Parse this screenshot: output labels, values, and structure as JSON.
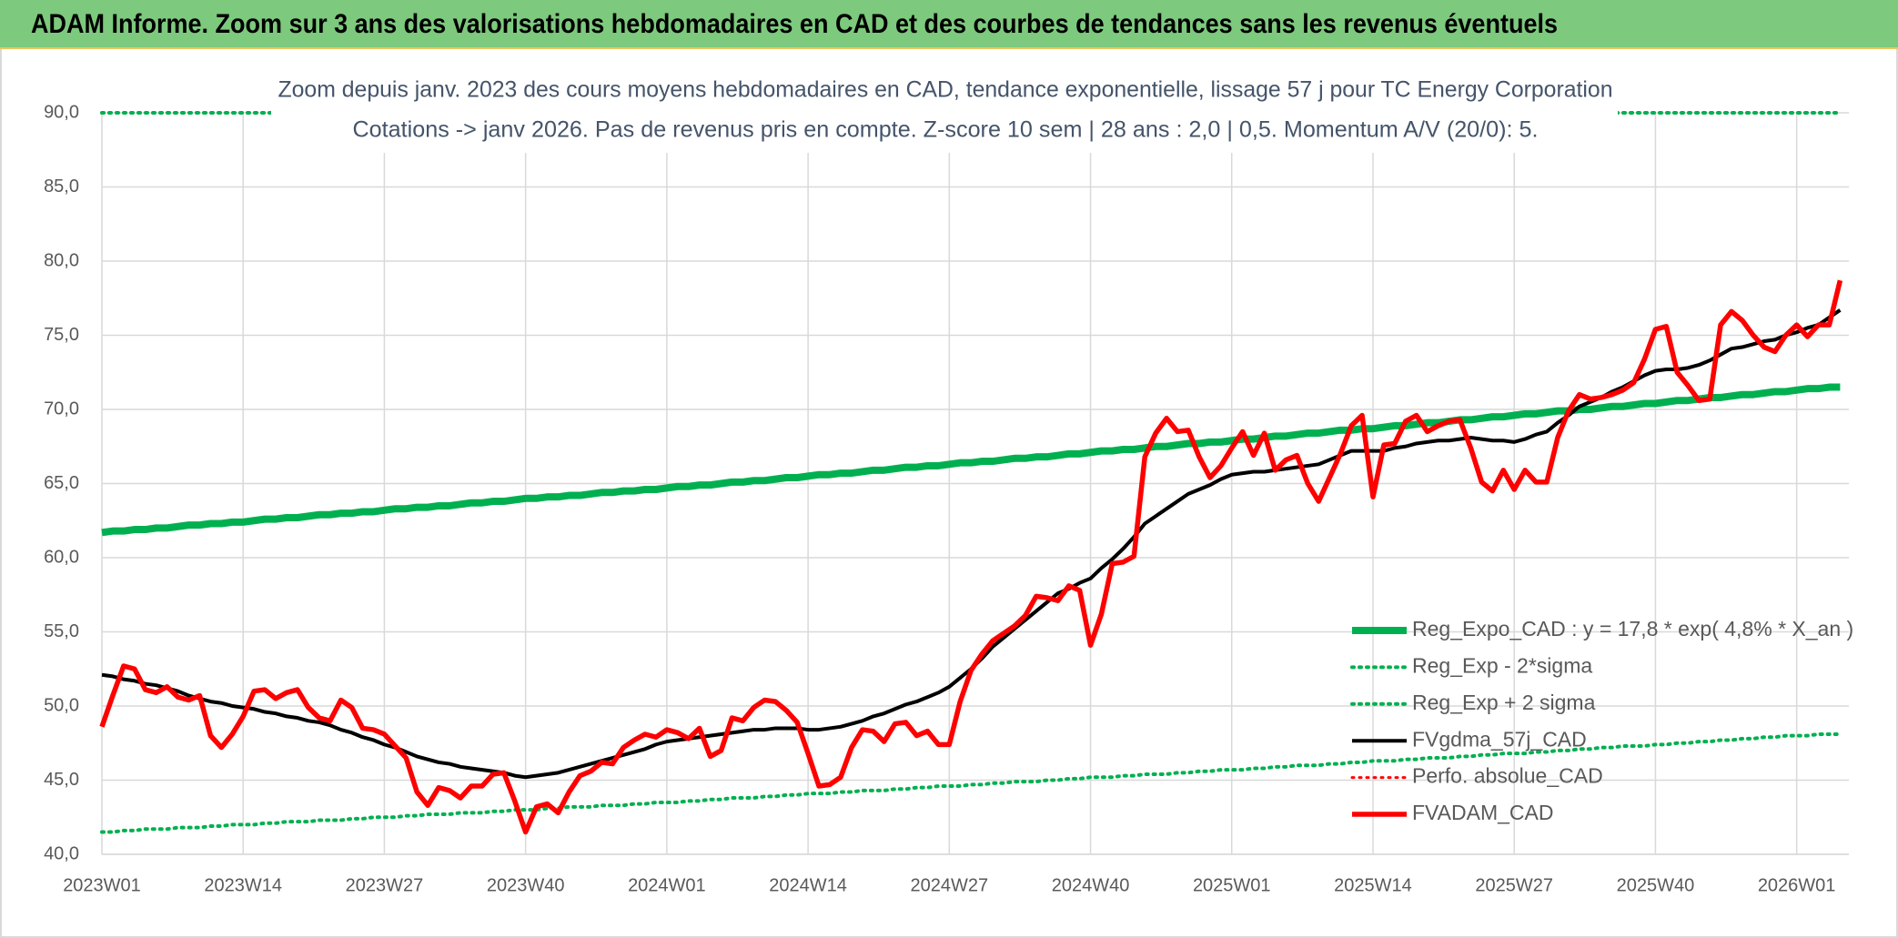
{
  "chart_data": {
    "type": "line",
    "title": "ADAM Informe. Zoom sur 3 ans des valorisations hebdomadaires en CAD et des courbes de tendances sans les revenus éventuels",
    "subtitle": [
      "Zoom depuis janv. 2023 des cours moyens hebdomadaires en CAD, tendance exponentielle, lissage 57 j pour TC Energy Corporation",
      "Cotations -> janv 2026. Pas de revenus pris en compte. Z-score 10 sem | 28 ans : 2,0 | 0,5. Momentum A/V (20/0): 5."
    ],
    "categories": [
      "2023W01",
      null,
      null,
      null,
      null,
      null,
      null,
      null,
      null,
      null,
      null,
      null,
      null,
      "2023W14",
      null,
      null,
      null,
      null,
      null,
      null,
      null,
      null,
      null,
      null,
      null,
      null,
      "2023W27",
      null,
      null,
      null,
      null,
      null,
      null,
      null,
      null,
      null,
      null,
      null,
      null,
      "2023W40",
      null,
      null,
      null,
      null,
      null,
      null,
      null,
      null,
      null,
      null,
      null,
      null,
      "2024W01",
      null,
      null,
      null,
      null,
      null,
      null,
      null,
      null,
      null,
      null,
      null,
      null,
      "2024W14",
      null,
      null,
      null,
      null,
      null,
      null,
      null,
      null,
      null,
      null,
      null,
      null,
      "2024W27",
      null,
      null,
      null,
      null,
      null,
      null,
      null,
      null,
      null,
      null,
      null,
      null,
      "2024W40",
      null,
      null,
      null,
      null,
      null,
      null,
      null,
      null,
      null,
      null,
      null,
      null,
      "2025W01",
      null,
      null,
      null,
      null,
      null,
      null,
      null,
      null,
      null,
      null,
      null,
      null,
      "2025W14",
      null,
      null,
      null,
      null,
      null,
      null,
      null,
      null,
      null,
      null,
      null,
      null,
      "2025W27",
      null,
      null,
      null,
      null,
      null,
      null,
      null,
      null,
      null,
      null,
      null,
      null,
      "2025W40",
      null,
      null,
      null,
      null,
      null,
      null,
      null,
      null,
      null,
      null,
      null,
      null,
      "2026W01",
      null,
      null,
      null,
      null
    ],
    "ylim": [
      40,
      90
    ],
    "yticks": [
      {
        "value": 40,
        "label": "40,0"
      },
      {
        "value": 45,
        "label": "45,0"
      },
      {
        "value": 50,
        "label": "50,0"
      },
      {
        "value": 55,
        "label": "55,0"
      },
      {
        "value": 60,
        "label": "60,0"
      },
      {
        "value": 65,
        "label": "65,0"
      },
      {
        "value": 70,
        "label": "70,0"
      },
      {
        "value": 75,
        "label": "75,0"
      },
      {
        "value": 80,
        "label": "80,0"
      },
      {
        "value": 85,
        "label": "85,0"
      },
      {
        "value": 90,
        "label": "90,0"
      }
    ],
    "grid": true,
    "legend": "right",
    "series": [
      {
        "name": "Reg_Expo_CAD : y = 17,8 * exp( 4,8% *  X_an )",
        "color": "#00b050",
        "line_style": "solid",
        "values": [
          61.7,
          61.8,
          61.8,
          61.9,
          61.9,
          62.0,
          62.0,
          62.1,
          62.2,
          62.2,
          62.3,
          62.3,
          62.4,
          62.4,
          62.5,
          62.6,
          62.6,
          62.7,
          62.7,
          62.8,
          62.9,
          62.9,
          63.0,
          63.0,
          63.1,
          63.1,
          63.2,
          63.3,
          63.3,
          63.4,
          63.4,
          63.5,
          63.5,
          63.6,
          63.7,
          63.7,
          63.8,
          63.8,
          63.9,
          64.0,
          64.0,
          64.1,
          64.1,
          64.2,
          64.2,
          64.3,
          64.4,
          64.4,
          64.5,
          64.5,
          64.6,
          64.6,
          64.7,
          64.8,
          64.8,
          64.9,
          64.9,
          65.0,
          65.1,
          65.1,
          65.2,
          65.2,
          65.3,
          65.4,
          65.4,
          65.5,
          65.6,
          65.6,
          65.7,
          65.7,
          65.8,
          65.9,
          65.9,
          66.0,
          66.1,
          66.1,
          66.2,
          66.2,
          66.3,
          66.4,
          66.4,
          66.5,
          66.5,
          66.6,
          66.7,
          66.7,
          66.8,
          66.8,
          66.9,
          67.0,
          67.0,
          67.1,
          67.2,
          67.2,
          67.3,
          67.3,
          67.4,
          67.5,
          67.5,
          67.6,
          67.7,
          67.7,
          67.8,
          67.8,
          67.9,
          68.0,
          68.0,
          68.1,
          68.2,
          68.2,
          68.3,
          68.4,
          68.4,
          68.5,
          68.6,
          68.6,
          68.7,
          68.7,
          68.8,
          68.9,
          68.9,
          69.0,
          69.1,
          69.1,
          69.2,
          69.3,
          69.3,
          69.4,
          69.5,
          69.5,
          69.6,
          69.7,
          69.7,
          69.8,
          69.9,
          69.9,
          70.0,
          70.0,
          70.1,
          70.2,
          70.2,
          70.3,
          70.4,
          70.4,
          70.5,
          70.6,
          70.6,
          70.7,
          70.8,
          70.8,
          70.9,
          71.0,
          71.0,
          71.1,
          71.2,
          71.2,
          71.3,
          71.4,
          71.4,
          71.5,
          71.5
        ]
      },
      {
        "name": "Reg_Exp - 2*sigma",
        "color": "#00b050",
        "line_style": "dotted",
        "values": [
          41.5,
          41.5,
          41.6,
          41.6,
          41.7,
          41.7,
          41.7,
          41.8,
          41.8,
          41.8,
          41.9,
          41.9,
          42.0,
          42.0,
          42.0,
          42.1,
          42.1,
          42.2,
          42.2,
          42.2,
          42.3,
          42.3,
          42.3,
          42.4,
          42.4,
          42.5,
          42.5,
          42.5,
          42.6,
          42.6,
          42.7,
          42.7,
          42.7,
          42.8,
          42.8,
          42.8,
          42.9,
          42.9,
          43.0,
          43.0,
          43.0,
          43.1,
          43.1,
          43.2,
          43.2,
          43.2,
          43.3,
          43.3,
          43.3,
          43.4,
          43.4,
          43.5,
          43.5,
          43.5,
          43.6,
          43.6,
          43.7,
          43.7,
          43.8,
          43.8,
          43.8,
          43.9,
          43.9,
          44.0,
          44.0,
          44.1,
          44.1,
          44.1,
          44.2,
          44.2,
          44.3,
          44.3,
          44.3,
          44.4,
          44.4,
          44.5,
          44.5,
          44.6,
          44.6,
          44.6,
          44.7,
          44.7,
          44.8,
          44.8,
          44.9,
          44.9,
          44.9,
          45.0,
          45.0,
          45.1,
          45.1,
          45.2,
          45.2,
          45.2,
          45.3,
          45.3,
          45.4,
          45.4,
          45.4,
          45.5,
          45.5,
          45.6,
          45.6,
          45.7,
          45.7,
          45.7,
          45.8,
          45.8,
          45.9,
          45.9,
          46.0,
          46.0,
          46.0,
          46.1,
          46.1,
          46.2,
          46.2,
          46.3,
          46.3,
          46.3,
          46.4,
          46.4,
          46.5,
          46.5,
          46.5,
          46.6,
          46.6,
          46.7,
          46.7,
          46.8,
          46.8,
          46.8,
          46.9,
          46.9,
          47.0,
          47.0,
          47.1,
          47.1,
          47.2,
          47.2,
          47.3,
          47.3,
          47.3,
          47.4,
          47.4,
          47.5,
          47.5,
          47.6,
          47.6,
          47.7,
          47.7,
          47.8,
          47.8,
          47.9,
          47.9,
          48.0,
          48.0,
          48.0,
          48.1,
          48.1,
          48.1
        ]
      },
      {
        "name": "Reg_Exp + 2 sigma",
        "color": "#00b050",
        "line_style": "dotted",
        "values": [
          90,
          90,
          90,
          90,
          90,
          90,
          90,
          90,
          90,
          90,
          90,
          90,
          90,
          90,
          90,
          90,
          90,
          90,
          90,
          90,
          90,
          90,
          90,
          90,
          90,
          90,
          90,
          90,
          90,
          90,
          90,
          90,
          90,
          90,
          90,
          90,
          90,
          90,
          90,
          90,
          90,
          90,
          90,
          90,
          90,
          90,
          90,
          90,
          90,
          90,
          90,
          90,
          90,
          90,
          90,
          90,
          90,
          90,
          90,
          90,
          90,
          90,
          90,
          90,
          90,
          90,
          90,
          90,
          90,
          90,
          90,
          90,
          90,
          90,
          90,
          90,
          90,
          90,
          90,
          90,
          90,
          90,
          90,
          90,
          90,
          90,
          90,
          90,
          90,
          90,
          90,
          90,
          90,
          90,
          90,
          90,
          90,
          90,
          90,
          90,
          90,
          90,
          90,
          90,
          90,
          90,
          90,
          90,
          90,
          90,
          90,
          90,
          90,
          90,
          90,
          90,
          90,
          90,
          90,
          90,
          90,
          90,
          90,
          90,
          90,
          90,
          90,
          90,
          90,
          90,
          90,
          90,
          90,
          90,
          90,
          90,
          90,
          90,
          90,
          90,
          90,
          90,
          90,
          90,
          90,
          90,
          90,
          90,
          90,
          90,
          90,
          90,
          90,
          90,
          90,
          90,
          90,
          90,
          90,
          90,
          90
        ]
      },
      {
        "name": "FVgdma_57j_CAD",
        "color": "#000000",
        "line_style": "solid",
        "values": [
          52.1,
          52.0,
          51.8,
          51.7,
          51.5,
          51.4,
          51.2,
          51.0,
          50.7,
          50.5,
          50.3,
          50.2,
          50.0,
          49.9,
          49.8,
          49.6,
          49.5,
          49.3,
          49.2,
          49.0,
          48.9,
          48.7,
          48.4,
          48.2,
          47.9,
          47.7,
          47.4,
          47.2,
          46.9,
          46.6,
          46.4,
          46.2,
          46.1,
          45.9,
          45.8,
          45.7,
          45.6,
          45.5,
          45.3,
          45.2,
          45.3,
          45.4,
          45.5,
          45.7,
          45.9,
          46.1,
          46.3,
          46.5,
          46.7,
          46.9,
          47.1,
          47.4,
          47.6,
          47.7,
          47.8,
          47.9,
          48.0,
          48.1,
          48.2,
          48.3,
          48.4,
          48.4,
          48.5,
          48.5,
          48.5,
          48.4,
          48.4,
          48.5,
          48.6,
          48.8,
          49.0,
          49.3,
          49.5,
          49.8,
          50.1,
          50.3,
          50.6,
          50.9,
          51.3,
          51.9,
          52.5,
          53.2,
          54.0,
          54.6,
          55.2,
          55.8,
          56.4,
          57.0,
          57.6,
          57.9,
          58.3,
          58.6,
          59.3,
          59.9,
          60.6,
          61.4,
          62.3,
          62.8,
          63.3,
          63.8,
          64.3,
          64.6,
          64.9,
          65.3,
          65.6,
          65.7,
          65.8,
          65.8,
          65.9,
          66.0,
          66.1,
          66.2,
          66.3,
          66.6,
          66.9,
          67.2,
          67.2,
          67.2,
          67.2,
          67.4,
          67.5,
          67.7,
          67.8,
          67.9,
          67.9,
          68.0,
          68.1,
          68.0,
          67.9,
          67.9,
          67.8,
          68.0,
          68.3,
          68.5,
          69.1,
          69.6,
          70.2,
          70.5,
          70.8,
          71.2,
          71.5,
          71.9,
          72.3,
          72.6,
          72.7,
          72.7,
          72.8,
          73.0,
          73.3,
          73.7,
          74.1,
          74.2,
          74.4,
          74.6,
          74.7,
          75.0,
          75.2,
          75.5,
          75.7,
          76.2,
          76.7
        ]
      },
      {
        "name": "Perfo. absolue_CAD",
        "color": "#ff0000",
        "line_style": "dotted",
        "values": [
          null,
          null,
          null,
          null,
          null,
          null,
          null,
          null,
          null,
          null,
          null,
          null,
          null,
          null,
          null,
          null,
          null,
          null,
          null,
          null,
          null,
          null,
          null,
          null,
          null,
          null,
          null,
          null,
          null,
          null,
          null,
          null,
          null,
          null,
          null,
          null,
          null,
          null,
          null,
          null,
          null,
          null,
          null,
          null,
          null,
          null,
          null,
          null,
          null,
          null,
          null,
          null,
          null,
          null,
          null,
          null,
          null,
          null,
          null,
          null,
          null,
          null,
          null,
          null,
          null,
          null,
          null,
          null,
          null,
          null,
          null,
          null,
          null,
          null,
          null,
          null,
          null,
          null,
          null,
          null,
          null,
          null,
          null,
          null,
          null,
          null,
          null,
          null,
          null,
          null,
          null,
          null,
          null,
          null,
          null,
          null,
          null,
          null,
          null,
          null,
          null,
          null,
          null,
          null,
          null,
          null,
          null,
          null,
          null,
          null,
          null,
          null,
          null,
          null,
          null,
          null,
          null,
          null,
          null,
          null,
          null,
          null,
          null,
          null,
          null,
          null,
          null,
          null,
          null,
          null,
          null,
          null,
          null,
          null,
          null,
          null,
          null,
          null,
          null,
          null,
          null,
          null,
          null,
          null,
          null,
          null,
          null,
          null,
          null,
          null,
          null,
          null,
          null,
          null,
          null,
          null,
          null,
          null,
          null,
          null,
          null
        ]
      },
      {
        "name": "FVADAM_CAD",
        "color": "#ff0000",
        "line_style": "solid",
        "values": [
          48.6,
          50.7,
          52.7,
          52.5,
          51.1,
          50.9,
          51.3,
          50.6,
          50.4,
          50.7,
          48.0,
          47.2,
          48.1,
          49.3,
          51.0,
          51.1,
          50.5,
          50.9,
          51.1,
          49.9,
          49.2,
          49.0,
          50.4,
          49.9,
          48.5,
          48.4,
          48.1,
          47.3,
          46.5,
          44.2,
          43.3,
          44.5,
          44.3,
          43.8,
          44.6,
          44.6,
          45.4,
          45.5,
          43.6,
          41.5,
          43.2,
          43.4,
          42.8,
          44.2,
          45.3,
          45.6,
          46.2,
          46.1,
          47.2,
          47.7,
          48.1,
          47.9,
          48.4,
          48.2,
          47.8,
          48.5,
          46.6,
          47.0,
          49.2,
          49.0,
          49.9,
          50.4,
          50.3,
          49.7,
          48.9,
          46.8,
          44.6,
          44.7,
          45.2,
          47.2,
          48.4,
          48.3,
          47.6,
          48.8,
          48.9,
          48.0,
          48.3,
          47.4,
          47.4,
          50.3,
          52.4,
          53.5,
          54.4,
          54.9,
          55.4,
          56.1,
          57.4,
          57.3,
          57.1,
          58.1,
          57.8,
          54.1,
          56.2,
          59.6,
          59.7,
          60.1,
          66.8,
          68.4,
          69.4,
          68.5,
          68.6,
          66.8,
          65.4,
          66.2,
          67.4,
          68.5,
          66.9,
          68.4,
          65.9,
          66.6,
          66.9,
          65.0,
          63.8,
          65.4,
          67.0,
          68.9,
          69.6,
          64.1,
          67.6,
          67.7,
          69.2,
          69.6,
          68.5,
          68.9,
          69.2,
          69.3,
          67.4,
          65.1,
          64.5,
          65.9,
          64.6,
          65.9,
          65.1,
          65.1,
          68.1,
          69.9,
          71.0,
          70.7,
          70.8,
          71.0,
          71.3,
          71.8,
          73.4,
          75.4,
          75.6,
          72.5,
          71.6,
          70.6,
          70.7,
          75.7,
          76.6,
          76.0,
          75.0,
          74.2,
          73.9,
          75.0,
          75.7,
          74.9,
          75.7,
          75.7,
          78.7
        ]
      }
    ]
  }
}
